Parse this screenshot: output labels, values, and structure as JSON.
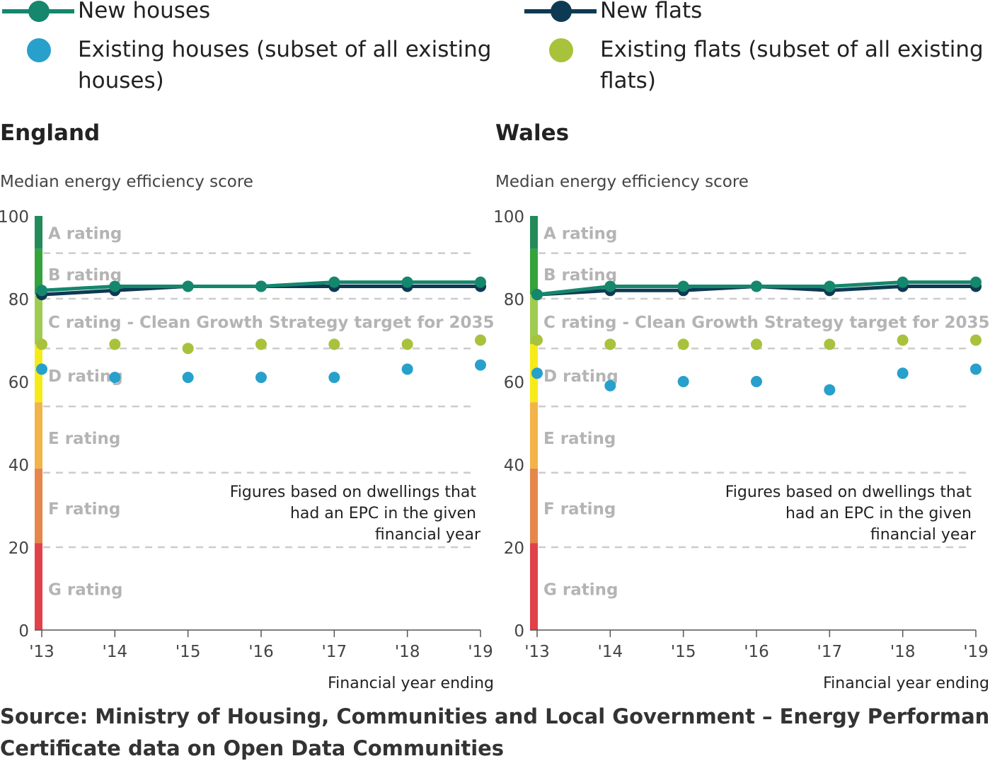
{
  "legend": {
    "items": [
      {
        "label": "New houses",
        "color": "#14876d",
        "marker": "line"
      },
      {
        "label": "New flats",
        "color": "#0d3a52",
        "marker": "line"
      },
      {
        "label_lines": [
          "Existing houses (subset of all existing",
          "houses)"
        ],
        "color": "#27a0cc",
        "marker": "dot"
      },
      {
        "label_lines": [
          "Existing flats (subset of all existing",
          "flats)"
        ],
        "color": "#a8c23c",
        "marker": "dot"
      }
    ]
  },
  "y_axis_title": "Median energy efficiency score",
  "x_axis_title": "Financial year ending",
  "annotation_lines": [
    "Figures based on dwellings that",
    "had an EPC in the given",
    "financial year"
  ],
  "bands": [
    {
      "label": "A rating",
      "from": 92,
      "to": 100,
      "color": "#238b5a"
    },
    {
      "label": "B rating",
      "from": 81,
      "to": 91,
      "color": "#35a33b"
    },
    {
      "label": "C rating - Clean Growth Strategy target for 2035",
      "from": 69,
      "to": 80,
      "color": "#9fcc50"
    },
    {
      "label": "D rating",
      "from": 55,
      "to": 68,
      "color": "#f6eb19"
    },
    {
      "label": "E rating",
      "from": 39,
      "to": 54,
      "color": "#f2b448"
    },
    {
      "label": "F rating",
      "from": 21,
      "to": 38,
      "color": "#e6864b"
    },
    {
      "label": "G rating",
      "from": 0,
      "to": 20,
      "color": "#e1414a"
    }
  ],
  "source_lines": [
    "Source: Ministry of Housing, Communities and Local Government – Energy Performance",
    "Certificate data on Open Data Communities"
  ],
  "chart_data": [
    {
      "type": "line",
      "title": "England",
      "ylabel": "Median energy efficiency score",
      "xlabel": "Financial year ending",
      "categories": [
        "'13",
        "'14",
        "'15",
        "'16",
        "'17",
        "'18",
        "'19"
      ],
      "ylim": [
        0,
        100
      ],
      "yticks": [
        0,
        20,
        40,
        60,
        80,
        100
      ],
      "grid": "dashed at band boundaries",
      "series": [
        {
          "name": "New flats",
          "style": "line",
          "color": "#0d3a52",
          "values": [
            81,
            82,
            83,
            83,
            83,
            83,
            83
          ]
        },
        {
          "name": "New houses",
          "style": "line",
          "color": "#14876d",
          "values": [
            82,
            83,
            83,
            83,
            84,
            84,
            84
          ]
        },
        {
          "name": "Existing houses (subset of all existing houses)",
          "style": "scatter",
          "color": "#27a0cc",
          "values": [
            63,
            61,
            61,
            61,
            61,
            63,
            64
          ]
        },
        {
          "name": "Existing flats (subset of all existing flats)",
          "style": "scatter",
          "color": "#a8c23c",
          "values": [
            69,
            69,
            68,
            69,
            69,
            69,
            70
          ]
        }
      ]
    },
    {
      "type": "line",
      "title": "Wales",
      "ylabel": "Median energy efficiency score",
      "xlabel": "Financial year ending",
      "categories": [
        "'13",
        "'14",
        "'15",
        "'16",
        "'17",
        "'18",
        "'19"
      ],
      "ylim": [
        0,
        100
      ],
      "yticks": [
        0,
        20,
        40,
        60,
        80,
        100
      ],
      "grid": "dashed at band boundaries",
      "series": [
        {
          "name": "New flats",
          "style": "line",
          "color": "#0d3a52",
          "values": [
            81,
            82,
            82,
            83,
            82,
            83,
            83
          ]
        },
        {
          "name": "New houses",
          "style": "line",
          "color": "#14876d",
          "values": [
            81,
            83,
            83,
            83,
            83,
            84,
            84
          ]
        },
        {
          "name": "Existing houses (subset of all existing houses)",
          "style": "scatter",
          "color": "#27a0cc",
          "values": [
            62,
            59,
            60,
            60,
            58,
            62,
            63
          ]
        },
        {
          "name": "Existing flats (subset of all existing flats)",
          "style": "scatter",
          "color": "#a8c23c",
          "values": [
            70,
            69,
            69,
            69,
            69,
            70,
            70
          ]
        }
      ]
    }
  ]
}
